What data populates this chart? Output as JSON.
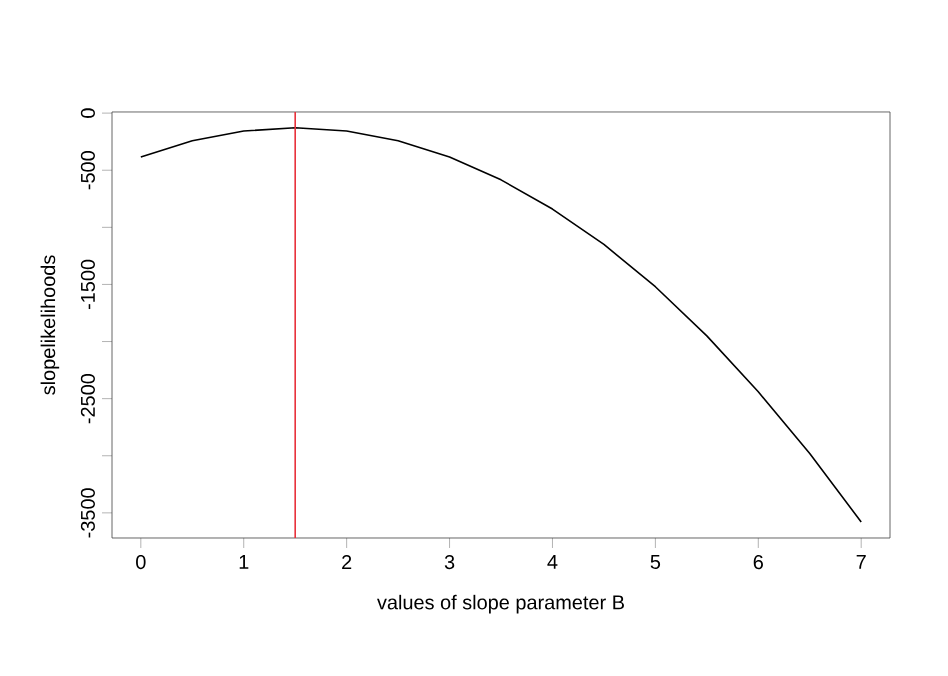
{
  "chart_data": {
    "type": "line",
    "xlabel": "values of slope parameter B",
    "ylabel": "slopelikelihoods",
    "x": [
      0,
      0.5,
      1,
      1.5,
      2,
      2.5,
      3,
      3.5,
      4,
      4.5,
      5,
      5.5,
      6,
      6.5,
      7
    ],
    "series": [
      {
        "color": "#000000",
        "values": [
          -385,
          -242,
          -157,
          -128,
          -157,
          -242,
          -384,
          -584,
          -840,
          -1150,
          -1520,
          -1950,
          -2440,
          -2980,
          -3580
        ]
      }
    ],
    "xlim": [
      -0.28,
      7.28
    ],
    "ylim": [
      -3720,
      10
    ],
    "xticks": [
      0,
      1,
      2,
      3,
      4,
      5,
      6,
      7
    ],
    "yticks": [
      0,
      -500,
      {
        "value": -1000,
        "label": null
      },
      -1500,
      {
        "value": -2000,
        "label": null
      },
      -2500,
      {
        "value": -3000,
        "label": null
      },
      -3500
    ],
    "ref_lines": [
      {
        "axis": "x",
        "value": 1.5,
        "color": "#e8303a"
      }
    ],
    "marker": "none",
    "line_style": "solid"
  }
}
